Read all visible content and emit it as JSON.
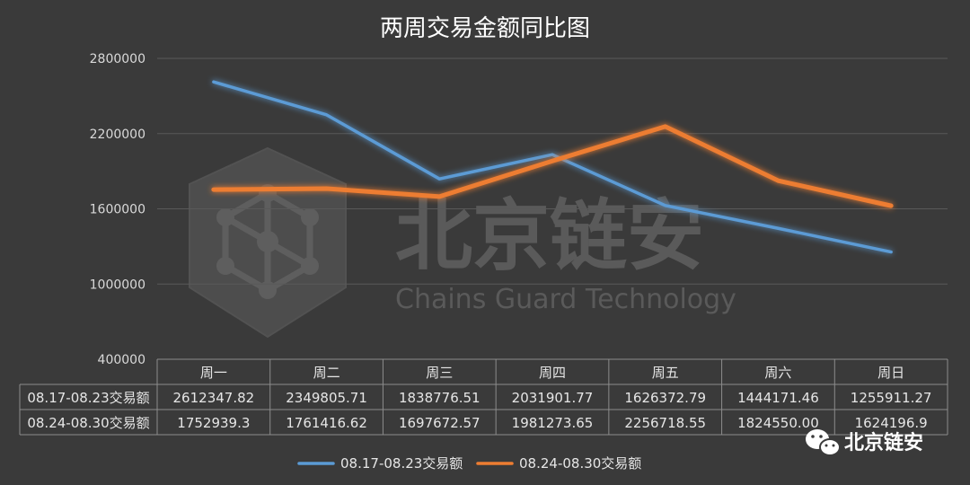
{
  "chart_data": {
    "type": "line",
    "title": "两周交易金额同比图",
    "categories": [
      "周一",
      "周二",
      "周三",
      "周四",
      "周五",
      "周六",
      "周日"
    ],
    "ylim": [
      400000,
      2800000
    ],
    "yticks": [
      "2800000",
      "2200000",
      "1600000",
      "1000000",
      "400000"
    ],
    "grid": true,
    "legend": "bottom",
    "series": [
      {
        "name": "08.17-08.23交易额",
        "color": "#5b9bd5",
        "values": [
          2612347.82,
          2349805.71,
          1838776.51,
          2031901.77,
          1626372.79,
          1444171.46,
          1255911.27
        ],
        "labels": [
          "2612347.82",
          "2349805.71",
          "1838776.51",
          "2031901.77",
          "1626372.79",
          "1444171.46",
          "1255911.27"
        ]
      },
      {
        "name": "08.24-08.30交易额",
        "color": "#ed7d31",
        "values": [
          1752939.3,
          1761416.62,
          1697672.57,
          1981273.65,
          2256718.55,
          1824550.0,
          1624196.9
        ],
        "labels": [
          "1752939.3",
          "1761416.62",
          "1697672.57",
          "1981273.65",
          "2256718.55",
          "1824550.00",
          "1624196.9"
        ]
      }
    ]
  },
  "watermark": {
    "cn": "北京链安",
    "en": "Chains Guard Technology"
  },
  "brand": {
    "icon": "wechat-icon",
    "text": "北京链安"
  }
}
